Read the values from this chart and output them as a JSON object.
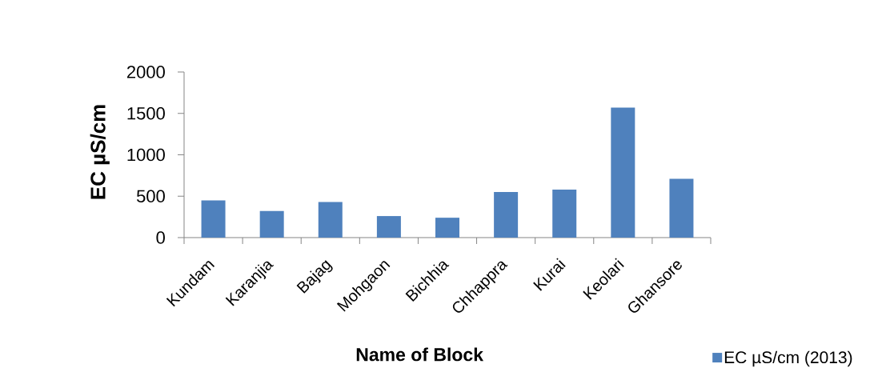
{
  "chart_data": {
    "type": "bar",
    "categories": [
      "Kundam",
      "Karanjia",
      "Bajag",
      "Mohgaon",
      "Bichhia",
      "Chhappra",
      "Kurai",
      "Keolari",
      "Ghansore"
    ],
    "series": [
      {
        "name": "EC µS/cm (2013)",
        "color": "#4f81bd",
        "values": [
          450,
          320,
          430,
          260,
          240,
          550,
          580,
          1570,
          710
        ]
      }
    ],
    "xlabel": "Name of Block",
    "ylabel": "EC µS/cm",
    "ylim": [
      0,
      2000
    ],
    "yticks": [
      0,
      500,
      1000,
      1500,
      2000
    ],
    "legend": "bottom right"
  }
}
